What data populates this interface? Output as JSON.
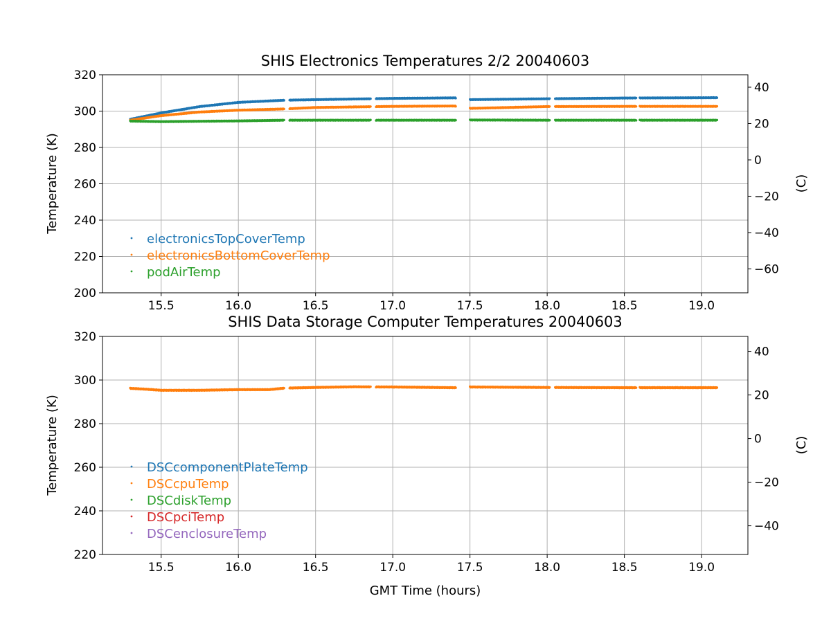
{
  "chart_data": [
    {
      "type": "scatter",
      "title": "SHIS Electronics Temperatures 2/2 20040603",
      "xlabel": "",
      "ylabel": "Temperature (K)",
      "ylabel_right": "(C)",
      "xlim": [
        15.12,
        19.3
      ],
      "ylim": [
        200,
        320
      ],
      "xticks": [
        "15.5",
        "16.0",
        "16.5",
        "17.0",
        "17.5",
        "18.0",
        "18.5",
        "19.0"
      ],
      "yticks": [
        "200",
        "220",
        "240",
        "260",
        "280",
        "300",
        "320"
      ],
      "yticks_right": [
        "−60",
        "−40",
        "−20",
        "0",
        "20",
        "40"
      ],
      "grid": true,
      "legend_position": "lower-left",
      "gaps": [
        [
          16.3,
          16.33
        ],
        [
          16.86,
          16.89
        ],
        [
          17.41,
          17.5
        ],
        [
          18.02,
          18.05
        ],
        [
          18.58,
          18.6
        ]
      ],
      "series": [
        {
          "name": "electronicsTopCoverTemp",
          "color": "#1f77b4",
          "x": [
            15.3,
            15.5,
            15.75,
            16.0,
            16.3,
            16.5,
            17.0,
            17.4,
            17.5,
            18.0,
            18.5,
            19.1
          ],
          "y": [
            295.5,
            299.0,
            302.5,
            304.8,
            306.0,
            306.3,
            307.0,
            307.3,
            306.3,
            306.8,
            307.2,
            307.4
          ]
        },
        {
          "name": "electronicsBottomCoverTemp",
          "color": "#ff7f0e",
          "x": [
            15.3,
            15.5,
            15.75,
            16.0,
            16.3,
            16.5,
            17.0,
            17.4,
            17.5,
            18.0,
            18.5,
            19.1
          ],
          "y": [
            295.0,
            297.5,
            299.5,
            300.5,
            301.2,
            302.0,
            302.6,
            302.8,
            301.5,
            302.5,
            302.6,
            302.6
          ]
        },
        {
          "name": "podAirTemp",
          "color": "#2ca02c",
          "x": [
            15.3,
            15.5,
            16.0,
            16.3,
            16.5,
            17.0,
            17.4,
            17.5,
            18.0,
            18.5,
            19.1
          ],
          "y": [
            294.5,
            294.2,
            294.6,
            295.0,
            295.0,
            295.0,
            295.0,
            295.1,
            295.0,
            295.0,
            295.0
          ]
        }
      ]
    },
    {
      "type": "scatter",
      "title": "SHIS Data Storage Computer Temperatures 20040603",
      "xlabel": "GMT Time (hours)",
      "ylabel": "Temperature (K)",
      "ylabel_right": "(C)",
      "xlim": [
        15.12,
        19.3
      ],
      "ylim": [
        220,
        320
      ],
      "xticks": [
        "15.5",
        "16.0",
        "16.5",
        "17.0",
        "17.5",
        "18.0",
        "18.5",
        "19.0"
      ],
      "yticks": [
        "220",
        "240",
        "260",
        "280",
        "300",
        "320"
      ],
      "yticks_right": [
        "−40",
        "−20",
        "0",
        "20",
        "40"
      ],
      "grid": true,
      "legend_position": "lower-left",
      "gaps": [
        [
          16.3,
          16.33
        ],
        [
          16.86,
          16.89
        ],
        [
          17.41,
          17.5
        ],
        [
          18.02,
          18.05
        ],
        [
          18.58,
          18.6
        ]
      ],
      "series": [
        {
          "name": "DSCcomponentPlateTemp",
          "color": "#1f77b4",
          "x": [],
          "y": []
        },
        {
          "name": "DSCcpuTemp",
          "color": "#ff7f0e",
          "x": [
            15.3,
            15.4,
            15.5,
            15.75,
            16.0,
            16.2,
            16.3,
            16.5,
            16.75,
            17.0,
            17.4,
            17.5,
            18.0,
            18.5,
            19.1
          ],
          "y": [
            296.2,
            295.8,
            295.3,
            295.3,
            295.6,
            295.6,
            296.3,
            296.6,
            296.9,
            296.8,
            296.5,
            296.8,
            296.6,
            296.5,
            296.5
          ]
        },
        {
          "name": "DSCdiskTemp",
          "color": "#2ca02c",
          "x": [],
          "y": []
        },
        {
          "name": "DSCpciTemp",
          "color": "#d62728",
          "x": [],
          "y": []
        },
        {
          "name": "DSCenclosureTemp",
          "color": "#9467bd",
          "x": [],
          "y": []
        }
      ]
    }
  ]
}
